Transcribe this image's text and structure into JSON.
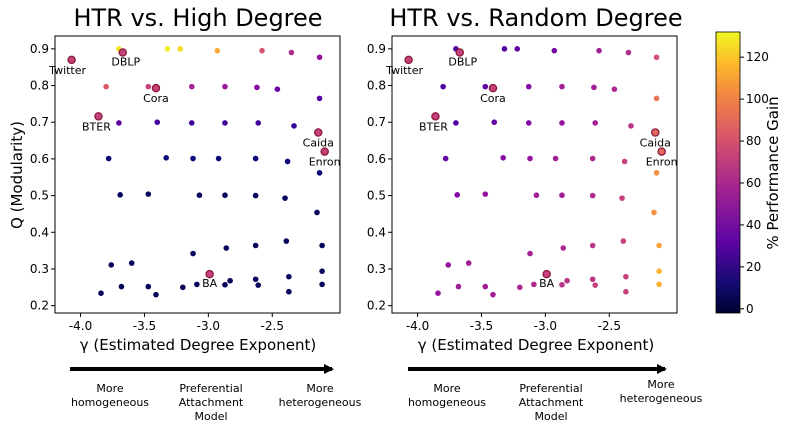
{
  "chart_data": [
    {
      "type": "scatter",
      "title": "HTR vs. High Degree",
      "xlabel": "γ (Estimated Degree Exponent)",
      "ylabel": "Q (Modularity)",
      "xlim": [
        -4.2,
        -1.97
      ],
      "ylim": [
        0.18,
        0.935
      ],
      "xticks": [
        "-4.0",
        "-3.5",
        "-3.0",
        "-2.5"
      ],
      "yticks": [
        "0.2",
        "0.3",
        "0.4",
        "0.5",
        "0.6",
        "0.7",
        "0.8",
        "0.9"
      ],
      "synthetic_points": [
        {
          "x": -3.7,
          "y": 0.9,
          "gain": 118
        },
        {
          "x": -3.32,
          "y": 0.9,
          "gain": 122
        },
        {
          "x": -3.22,
          "y": 0.9,
          "gain": 110
        },
        {
          "x": -2.93,
          "y": 0.895,
          "gain": 92
        },
        {
          "x": -2.58,
          "y": 0.895,
          "gain": 62
        },
        {
          "x": -2.35,
          "y": 0.89,
          "gain": 45
        },
        {
          "x": -2.13,
          "y": 0.877,
          "gain": 35
        },
        {
          "x": -3.8,
          "y": 0.797,
          "gain": 65
        },
        {
          "x": -3.47,
          "y": 0.797,
          "gain": 55
        },
        {
          "x": -3.13,
          "y": 0.797,
          "gain": 42
        },
        {
          "x": -2.87,
          "y": 0.797,
          "gain": 38
        },
        {
          "x": -2.62,
          "y": 0.795,
          "gain": 30
        },
        {
          "x": -2.46,
          "y": 0.79,
          "gain": 22
        },
        {
          "x": -2.13,
          "y": 0.765,
          "gain": 15
        },
        {
          "x": -3.7,
          "y": 0.698,
          "gain": 18
        },
        {
          "x": -3.4,
          "y": 0.7,
          "gain": 12
        },
        {
          "x": -3.13,
          "y": 0.698,
          "gain": 10
        },
        {
          "x": -2.87,
          "y": 0.698,
          "gain": 10
        },
        {
          "x": -2.61,
          "y": 0.698,
          "gain": 10
        },
        {
          "x": -2.33,
          "y": 0.69,
          "gain": 8
        },
        {
          "x": -3.78,
          "y": 0.601,
          "gain": 5
        },
        {
          "x": -3.33,
          "y": 0.603,
          "gain": 5
        },
        {
          "x": -3.12,
          "y": 0.601,
          "gain": 5
        },
        {
          "x": -2.92,
          "y": 0.601,
          "gain": 5
        },
        {
          "x": -2.63,
          "y": 0.601,
          "gain": 5
        },
        {
          "x": -2.38,
          "y": 0.593,
          "gain": 5
        },
        {
          "x": -2.13,
          "y": 0.562,
          "gain": 5
        },
        {
          "x": -3.69,
          "y": 0.502,
          "gain": 3
        },
        {
          "x": -3.47,
          "y": 0.504,
          "gain": 3
        },
        {
          "x": -3.07,
          "y": 0.501,
          "gain": 3
        },
        {
          "x": -2.87,
          "y": 0.501,
          "gain": 3
        },
        {
          "x": -2.63,
          "y": 0.5,
          "gain": 3
        },
        {
          "x": -2.4,
          "y": 0.493,
          "gain": 3
        },
        {
          "x": -2.15,
          "y": 0.454,
          "gain": 3
        },
        {
          "x": -3.12,
          "y": 0.342,
          "gain": 3
        },
        {
          "x": -2.86,
          "y": 0.357,
          "gain": 3
        },
        {
          "x": -2.63,
          "y": 0.364,
          "gain": 3
        },
        {
          "x": -2.39,
          "y": 0.376,
          "gain": 3
        },
        {
          "x": -2.11,
          "y": 0.364,
          "gain": 3
        },
        {
          "x": -3.76,
          "y": 0.311,
          "gain": 3
        },
        {
          "x": -3.6,
          "y": 0.316,
          "gain": 3
        },
        {
          "x": -2.11,
          "y": 0.294,
          "gain": 3
        },
        {
          "x": -3.68,
          "y": 0.252,
          "gain": 3
        },
        {
          "x": -3.47,
          "y": 0.252,
          "gain": 3
        },
        {
          "x": -3.2,
          "y": 0.25,
          "gain": 3
        },
        {
          "x": -3.09,
          "y": 0.258,
          "gain": 3
        },
        {
          "x": -2.87,
          "y": 0.257,
          "gain": 3
        },
        {
          "x": -2.83,
          "y": 0.268,
          "gain": 3
        },
        {
          "x": -2.63,
          "y": 0.272,
          "gain": 3
        },
        {
          "x": -2.61,
          "y": 0.256,
          "gain": 3
        },
        {
          "x": -2.37,
          "y": 0.279,
          "gain": 3
        },
        {
          "x": -2.37,
          "y": 0.238,
          "gain": 3
        },
        {
          "x": -2.11,
          "y": 0.258,
          "gain": 3
        },
        {
          "x": -3.84,
          "y": 0.234,
          "gain": 3
        },
        {
          "x": -3.41,
          "y": 0.23,
          "gain": 3
        }
      ],
      "real_networks": [
        {
          "name": "Twitter",
          "x": -4.07,
          "y": 0.87,
          "gain": 55
        },
        {
          "name": "DBLP",
          "x": -3.67,
          "y": 0.89,
          "gain": 55
        },
        {
          "name": "Cora",
          "x": -3.41,
          "y": 0.793,
          "gain": 55
        },
        {
          "name": "BTER",
          "x": -3.86,
          "y": 0.716,
          "gain": 55
        },
        {
          "name": "Caida",
          "x": -2.14,
          "y": 0.672,
          "gain": 55
        },
        {
          "name": "Enron",
          "x": -2.09,
          "y": 0.62,
          "gain": 55
        },
        {
          "name": "BA",
          "x": -2.99,
          "y": 0.286,
          "gain": 55
        }
      ]
    },
    {
      "type": "scatter",
      "title": "HTR vs. Random Degree",
      "xlabel": "γ (Estimated Degree Exponent)",
      "ylabel": "",
      "xlim": [
        -4.2,
        -1.97
      ],
      "ylim": [
        0.18,
        0.935
      ],
      "xticks": [
        "-4.0",
        "-3.5",
        "-3.0",
        "-2.5"
      ],
      "yticks": [
        "0.2",
        "0.3",
        "0.4",
        "0.5",
        "0.6",
        "0.7",
        "0.8",
        "0.9"
      ],
      "synthetic_points": [
        {
          "x": -3.7,
          "y": 0.9,
          "gain": 15
        },
        {
          "x": -3.32,
          "y": 0.9,
          "gain": 15
        },
        {
          "x": -3.22,
          "y": 0.9,
          "gain": 20
        },
        {
          "x": -2.93,
          "y": 0.895,
          "gain": 25
        },
        {
          "x": -2.58,
          "y": 0.895,
          "gain": 40
        },
        {
          "x": -2.35,
          "y": 0.89,
          "gain": 45
        },
        {
          "x": -2.13,
          "y": 0.877,
          "gain": 60
        },
        {
          "x": -3.8,
          "y": 0.797,
          "gain": 15
        },
        {
          "x": -3.47,
          "y": 0.797,
          "gain": 20
        },
        {
          "x": -3.13,
          "y": 0.797,
          "gain": 30
        },
        {
          "x": -2.87,
          "y": 0.797,
          "gain": 40
        },
        {
          "x": -2.62,
          "y": 0.795,
          "gain": 40
        },
        {
          "x": -2.46,
          "y": 0.79,
          "gain": 45
        },
        {
          "x": -2.13,
          "y": 0.765,
          "gain": 75
        },
        {
          "x": -3.7,
          "y": 0.698,
          "gain": 15
        },
        {
          "x": -3.4,
          "y": 0.7,
          "gain": 20
        },
        {
          "x": -3.13,
          "y": 0.698,
          "gain": 30
        },
        {
          "x": -2.87,
          "y": 0.698,
          "gain": 35
        },
        {
          "x": -2.61,
          "y": 0.698,
          "gain": 40
        },
        {
          "x": -2.33,
          "y": 0.69,
          "gain": 50
        },
        {
          "x": -3.78,
          "y": 0.601,
          "gain": 20
        },
        {
          "x": -3.33,
          "y": 0.603,
          "gain": 30
        },
        {
          "x": -3.12,
          "y": 0.601,
          "gain": 35
        },
        {
          "x": -2.92,
          "y": 0.601,
          "gain": 40
        },
        {
          "x": -2.63,
          "y": 0.601,
          "gain": 45
        },
        {
          "x": -2.38,
          "y": 0.593,
          "gain": 55
        },
        {
          "x": -2.13,
          "y": 0.562,
          "gain": 85
        },
        {
          "x": -3.69,
          "y": 0.502,
          "gain": 30
        },
        {
          "x": -3.47,
          "y": 0.504,
          "gain": 35
        },
        {
          "x": -3.07,
          "y": 0.501,
          "gain": 40
        },
        {
          "x": -2.87,
          "y": 0.501,
          "gain": 40
        },
        {
          "x": -2.63,
          "y": 0.5,
          "gain": 45
        },
        {
          "x": -2.4,
          "y": 0.493,
          "gain": 55
        },
        {
          "x": -2.15,
          "y": 0.454,
          "gain": 85
        },
        {
          "x": -3.12,
          "y": 0.342,
          "gain": 40
        },
        {
          "x": -2.86,
          "y": 0.357,
          "gain": 45
        },
        {
          "x": -2.63,
          "y": 0.364,
          "gain": 50
        },
        {
          "x": -2.39,
          "y": 0.376,
          "gain": 55
        },
        {
          "x": -2.11,
          "y": 0.364,
          "gain": 90
        },
        {
          "x": -3.76,
          "y": 0.311,
          "gain": 35
        },
        {
          "x": -3.6,
          "y": 0.316,
          "gain": 40
        },
        {
          "x": -2.11,
          "y": 0.294,
          "gain": 95
        },
        {
          "x": -3.68,
          "y": 0.252,
          "gain": 40
        },
        {
          "x": -3.47,
          "y": 0.252,
          "gain": 40
        },
        {
          "x": -3.2,
          "y": 0.25,
          "gain": 45
        },
        {
          "x": -3.09,
          "y": 0.258,
          "gain": 45
        },
        {
          "x": -2.87,
          "y": 0.257,
          "gain": 50
        },
        {
          "x": -2.83,
          "y": 0.268,
          "gain": 50
        },
        {
          "x": -2.63,
          "y": 0.272,
          "gain": 50
        },
        {
          "x": -2.61,
          "y": 0.256,
          "gain": 55
        },
        {
          "x": -2.37,
          "y": 0.279,
          "gain": 55
        },
        {
          "x": -2.37,
          "y": 0.238,
          "gain": 55
        },
        {
          "x": -2.11,
          "y": 0.258,
          "gain": 95
        },
        {
          "x": -3.84,
          "y": 0.234,
          "gain": 35
        },
        {
          "x": -3.41,
          "y": 0.23,
          "gain": 40
        }
      ],
      "real_networks": [
        {
          "name": "Twitter",
          "x": -4.07,
          "y": 0.87,
          "gain": 55
        },
        {
          "name": "DBLP",
          "x": -3.67,
          "y": 0.89,
          "gain": 55
        },
        {
          "name": "Cora",
          "x": -3.41,
          "y": 0.793,
          "gain": 55
        },
        {
          "name": "BTER",
          "x": -3.86,
          "y": 0.716,
          "gain": 55
        },
        {
          "name": "Caida",
          "x": -2.14,
          "y": 0.672,
          "gain": 70
        },
        {
          "name": "Enron",
          "x": -2.09,
          "y": 0.62,
          "gain": 70
        },
        {
          "name": "BA",
          "x": -2.99,
          "y": 0.286,
          "gain": 55
        }
      ]
    }
  ],
  "colorbar": {
    "label": "% Performance Gain",
    "range": [
      -2,
      132
    ],
    "ticks": [
      "0",
      "20",
      "40",
      "60",
      "80",
      "100",
      "120"
    ],
    "tick_values": [
      0,
      20,
      40,
      60,
      80,
      100,
      120
    ],
    "colormap": "plasma",
    "stops": [
      "#0d0887",
      "#6a00a8",
      "#b12a90",
      "#e16462",
      "#fca636",
      "#f0f921"
    ],
    "low_color": "#00002e"
  },
  "arrow_labels": {
    "left": [
      "More",
      "homogeneous"
    ],
    "middle": [
      "Preferential",
      "Attachment",
      "Model"
    ],
    "right": [
      "More",
      "heterogeneous"
    ]
  },
  "colors": {
    "real_network_fill": "#8b1a3a",
    "axis": "#000000"
  }
}
